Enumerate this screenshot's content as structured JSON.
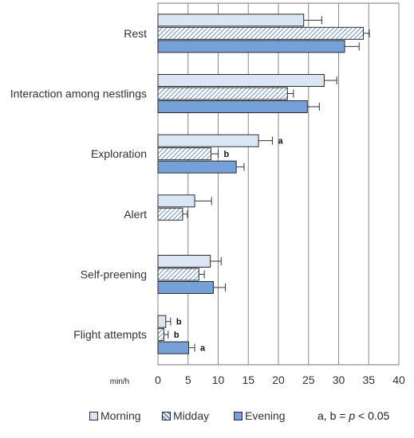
{
  "chart_data": {
    "type": "bar",
    "orientation": "horizontal",
    "categories": [
      "Rest",
      "Interaction among nestlings",
      "Exploration",
      "Alert",
      "Self-preening",
      "Flight attempts"
    ],
    "series": [
      {
        "name": "Morning",
        "values": [
          24.2,
          27.6,
          16.7,
          6.1,
          8.7,
          1.3
        ],
        "errors": [
          3.0,
          2.1,
          2.3,
          2.8,
          1.8,
          0.8
        ],
        "color": "#dbe6f4",
        "pattern": "solid"
      },
      {
        "name": "Midday",
        "values": [
          34.1,
          21.5,
          8.8,
          4.1,
          6.8,
          1.0
        ],
        "errors": [
          1.0,
          1.0,
          1.2,
          0.8,
          0.9,
          0.7
        ],
        "color": "#b9cde6",
        "pattern": "hatched"
      },
      {
        "name": "Evening",
        "values": [
          31.0,
          24.8,
          13.0,
          0,
          9.2,
          5.1
        ],
        "errors": [
          2.4,
          2.0,
          1.3,
          0,
          2.0,
          1.0
        ],
        "color": "#76a0d8",
        "pattern": "solid"
      }
    ],
    "annotations": [
      {
        "category": "Exploration",
        "series": "Morning",
        "text": "a"
      },
      {
        "category": "Exploration",
        "series": "Midday",
        "text": "b"
      },
      {
        "category": "Flight attempts",
        "series": "Morning",
        "text": "b"
      },
      {
        "category": "Flight attempts",
        "series": "Midday",
        "text": "b"
      },
      {
        "category": "Flight attempts",
        "series": "Evening",
        "text": "a"
      }
    ],
    "xlabel": "min/h",
    "xlim": [
      0,
      40
    ],
    "xticks": [
      "0",
      "5",
      "10",
      "15",
      "20",
      "25",
      "30",
      "35",
      "40"
    ],
    "grid": "vertical",
    "legend": "bottom"
  },
  "legend": {
    "items": [
      "Morning",
      "Midday",
      "Evening"
    ],
    "note_prefix": "a, b = ",
    "note_p": "p",
    "note_suffix": " < 0.05"
  }
}
